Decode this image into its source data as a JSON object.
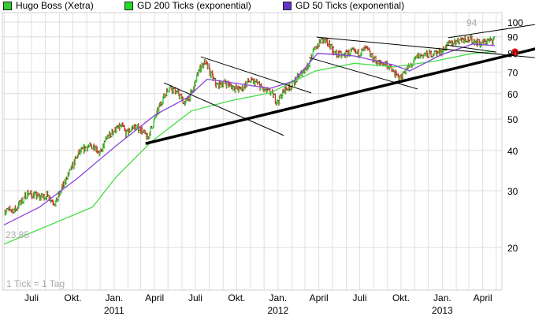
{
  "legend": [
    {
      "label": "Hugo Boss (Xetra)",
      "color": "#33cc33"
    },
    {
      "label": "GD 200 Ticks (exponential)",
      "color": "#22dd22"
    },
    {
      "label": "GD 50 Ticks (exponential)",
      "color": "#6633cc"
    }
  ],
  "chart_data": {
    "type": "candlestick",
    "title": "",
    "xlabel": "",
    "ylabel": "",
    "y_scale": "log",
    "ylim": [
      17.5,
      105
    ],
    "xlim": [
      "2010-05-01",
      "2013-05-05"
    ],
    "grid": true,
    "legend_position": "top",
    "y_ticks": [
      20,
      30,
      40,
      50,
      60,
      70,
      80,
      90,
      100
    ],
    "x_ticks": [
      {
        "date": "2010-07-01",
        "label": "Juli",
        "year": ""
      },
      {
        "date": "2010-10-01",
        "label": "Okt.",
        "year": ""
      },
      {
        "date": "2011-01-01",
        "label": "Jan.",
        "year": "2011"
      },
      {
        "date": "2011-04-01",
        "label": "April",
        "year": ""
      },
      {
        "date": "2011-07-01",
        "label": "Juli",
        "year": ""
      },
      {
        "date": "2011-10-01",
        "label": "Okt.",
        "year": ""
      },
      {
        "date": "2012-01-01",
        "label": "Jan.",
        "year": "2012"
      },
      {
        "date": "2012-04-01",
        "label": "April",
        "year": ""
      },
      {
        "date": "2012-07-01",
        "label": "Juli",
        "year": ""
      },
      {
        "date": "2012-10-01",
        "label": "Okt.",
        "year": ""
      },
      {
        "date": "2013-01-01",
        "label": "Jan.",
        "year": "2013"
      },
      {
        "date": "2013-04-01",
        "label": "April",
        "year": ""
      }
    ],
    "annotations": {
      "max_label": "94",
      "min_label": "23,85",
      "tick_note": "1 Tick = 1 Tag"
    },
    "price": {
      "name": "Hugo Boss (Xetra)",
      "color_up": "#33cc33",
      "color_down": "#e03030",
      "dates": [
        "2010-05-01",
        "2010-05-27",
        "2010-06-22",
        "2010-07-19",
        "2010-08-05",
        "2010-08-23",
        "2010-09-09",
        "2010-09-27",
        "2010-10-14",
        "2010-11-01",
        "2010-11-18",
        "2010-12-01",
        "2010-12-15",
        "2011-01-01",
        "2011-01-19",
        "2011-01-28",
        "2011-02-14",
        "2011-03-04",
        "2011-03-16",
        "2011-03-30",
        "2011-04-17",
        "2011-05-04",
        "2011-05-22",
        "2011-06-08",
        "2011-06-26",
        "2011-07-08",
        "2011-07-22",
        "2011-08-05",
        "2011-08-17",
        "2011-09-04",
        "2011-09-22",
        "2011-10-09",
        "2011-10-27",
        "2011-11-13",
        "2011-12-01",
        "2011-12-18",
        "2011-12-31",
        "2012-01-14",
        "2012-01-31",
        "2012-02-18",
        "2012-03-06",
        "2012-03-24",
        "2012-04-07",
        "2012-04-24",
        "2012-05-07",
        "2012-05-24",
        "2012-06-11",
        "2012-06-28",
        "2012-07-16",
        "2012-07-28",
        "2012-08-11",
        "2012-08-29",
        "2012-09-15",
        "2012-09-29",
        "2012-10-12",
        "2012-10-24",
        "2012-11-07",
        "2012-11-25",
        "2012-12-12",
        "2012-12-30",
        "2013-01-16",
        "2013-02-03",
        "2013-02-20",
        "2013-03-10",
        "2013-03-27",
        "2013-04-14",
        "2013-04-28"
      ],
      "close": [
        25.9,
        26.3,
        29.5,
        28.6,
        29.0,
        27.4,
        31.0,
        35.0,
        39.2,
        41.0,
        41.3,
        39.0,
        43.6,
        46.2,
        47.5,
        45.0,
        47.5,
        46.2,
        43.6,
        48.9,
        57.0,
        63.0,
        60.3,
        56.0,
        61.5,
        70.5,
        75.5,
        68.5,
        63.6,
        65.0,
        63.0,
        61.5,
        65.6,
        65.0,
        61.5,
        60.3,
        56.0,
        61.5,
        63.6,
        68.5,
        72.6,
        83.0,
        88.0,
        85.5,
        80.0,
        78.5,
        81.0,
        80.0,
        82.8,
        77.5,
        74.5,
        74.5,
        69.5,
        66.5,
        71.3,
        73.6,
        78.5,
        79.2,
        80.0,
        81.0,
        85.5,
        87.5,
        89.0,
        88.0,
        85.5,
        87.5,
        88.0
      ]
    },
    "series": [
      {
        "name": "GD 200 Ticks (exponential)",
        "color": "#44dd44",
        "dates": [
          "2010-05-01",
          "2010-11-14",
          "2011-01-05",
          "2011-03-26",
          "2011-06-22",
          "2011-09-17",
          "2011-12-14",
          "2012-03-24",
          "2012-06-19",
          "2012-09-15",
          "2012-12-12",
          "2013-03-10",
          "2013-04-28"
        ],
        "values": [
          20.5,
          26.7,
          33.0,
          42.7,
          53.0,
          57.0,
          60.3,
          70.5,
          74.5,
          72.6,
          75.5,
          80.0,
          81.0
        ]
      },
      {
        "name": "GD 50 Ticks (exponential)",
        "color": "#8844dd",
        "dates": [
          "2010-05-01",
          "2010-07-19",
          "2010-10-14",
          "2011-01-05",
          "2011-04-03",
          "2011-06-13",
          "2011-07-27",
          "2011-09-17",
          "2011-12-14",
          "2012-02-05",
          "2012-03-29",
          "2012-06-19",
          "2012-09-15",
          "2012-10-20",
          "2012-12-30",
          "2013-03-10",
          "2013-04-28"
        ],
        "values": [
          23.5,
          26.7,
          33.0,
          41.3,
          51.6,
          58.3,
          66.5,
          65.0,
          62.3,
          65.6,
          80.0,
          78.5,
          73.6,
          70.5,
          79.2,
          85.5,
          84.5
        ]
      }
    ],
    "trend_lines": [
      {
        "from": [
          "2011-03-12",
          42.0
        ],
        "to": [
          "2013-07-27",
          82.6
        ],
        "weight": "thick"
      },
      {
        "from": [
          "2011-04-22",
          64.8
        ],
        "to": [
          "2012-01-14",
          44.5
        ],
        "weight": "thin"
      },
      {
        "from": [
          "2011-07-13",
          78.1
        ],
        "to": [
          "2012-03-15",
          60.3
        ],
        "weight": "thin"
      },
      {
        "from": [
          "2012-03-27",
          89.8
        ],
        "to": [
          "2013-07-26",
          77.6
        ],
        "weight": "thin"
      },
      {
        "from": [
          "2012-03-10",
          77.6
        ],
        "to": [
          "2012-11-07",
          62.0
        ],
        "weight": "thin"
      },
      {
        "from": [
          "2013-01-14",
          89.4
        ],
        "to": [
          "2013-07-27",
          98.3
        ],
        "weight": "thin"
      },
      {
        "from": [
          "2013-01-10",
          84.9
        ],
        "to": [
          "2013-05-01",
          80.7
        ],
        "weight": "thin"
      }
    ],
    "marker": {
      "date": "2013-06-12",
      "value": 80.8,
      "color": "#ee1111"
    }
  }
}
